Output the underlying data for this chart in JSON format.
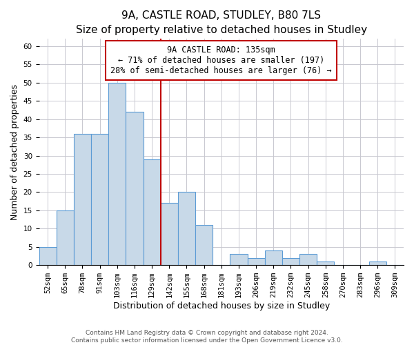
{
  "title": "9A, CASTLE ROAD, STUDLEY, B80 7LS",
  "subtitle": "Size of property relative to detached houses in Studley",
  "xlabel": "Distribution of detached houses by size in Studley",
  "ylabel": "Number of detached properties",
  "footnote1": "Contains HM Land Registry data © Crown copyright and database right 2024.",
  "footnote2": "Contains public sector information licensed under the Open Government Licence v3.0.",
  "bar_labels": [
    "52sqm",
    "65sqm",
    "78sqm",
    "91sqm",
    "103sqm",
    "116sqm",
    "129sqm",
    "142sqm",
    "155sqm",
    "168sqm",
    "181sqm",
    "193sqm",
    "206sqm",
    "219sqm",
    "232sqm",
    "245sqm",
    "258sqm",
    "270sqm",
    "283sqm",
    "296sqm",
    "309sqm"
  ],
  "bar_values": [
    5,
    15,
    36,
    36,
    50,
    42,
    29,
    17,
    20,
    11,
    0,
    3,
    2,
    4,
    2,
    3,
    1,
    0,
    0,
    1,
    0
  ],
  "bar_color": "#c8d9e8",
  "bar_edge_color": "#5b9bd5",
  "vline_x": 6.5,
  "vline_color": "#c00000",
  "annotation_line1": "9A CASTLE ROAD: 135sqm",
  "annotation_line2": "← 71% of detached houses are smaller (197)",
  "annotation_line3": "28% of semi-detached houses are larger (76) →",
  "annotation_box_color": "#ffffff",
  "annotation_box_edge": "#c00000",
  "ylim": [
    0,
    62
  ],
  "yticks": [
    0,
    5,
    10,
    15,
    20,
    25,
    30,
    35,
    40,
    45,
    50,
    55,
    60
  ],
  "title_fontsize": 11,
  "subtitle_fontsize": 9.5,
  "axis_label_fontsize": 9,
  "tick_fontsize": 7.5,
  "annotation_fontsize": 8.5,
  "footnote_fontsize": 6.5
}
